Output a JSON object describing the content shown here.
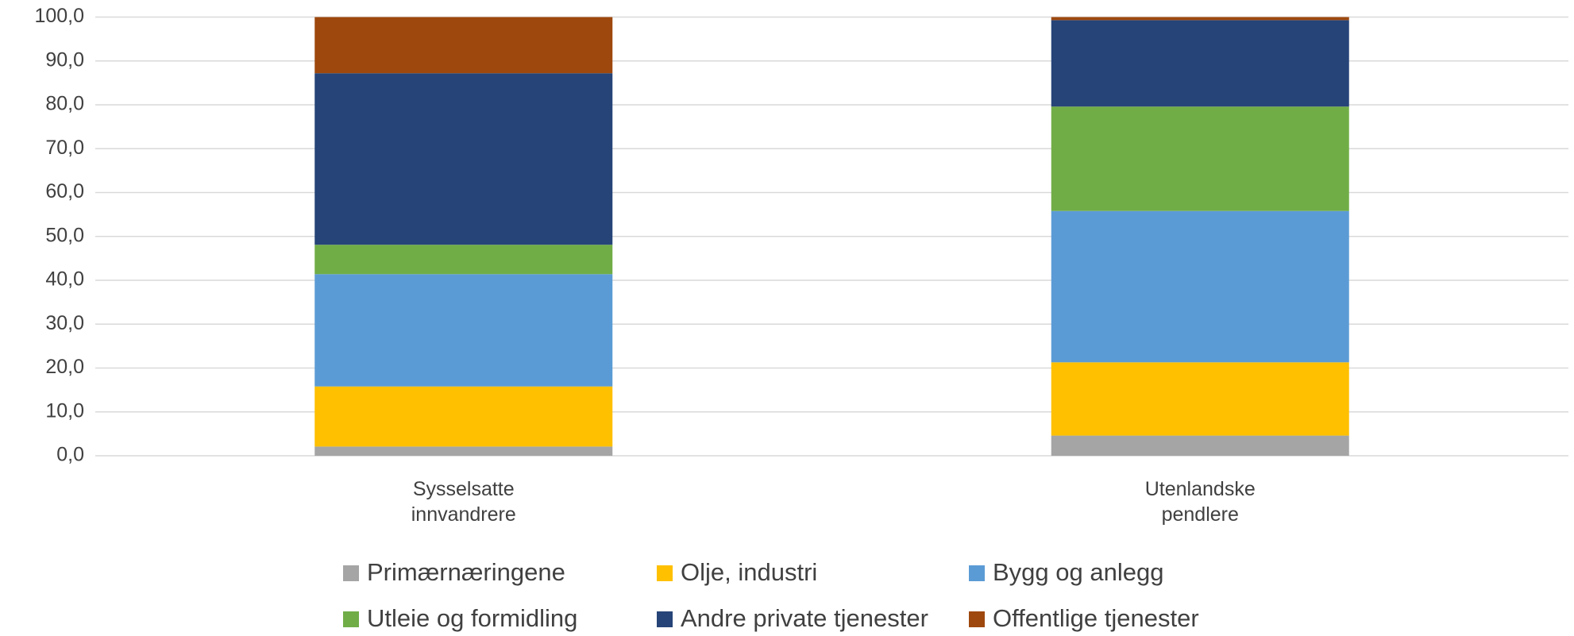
{
  "chart_data": {
    "type": "stacked_bar",
    "categories": [
      "Sysselsatte innvandrere",
      "Utenlandske pendlere"
    ],
    "series": [
      {
        "name": "Primærnæringene",
        "color": "#a5a5a5",
        "values": [
          2.1,
          4.6
        ]
      },
      {
        "name": "Olje, industri",
        "color": "#ffc000",
        "values": [
          13.7,
          16.7
        ]
      },
      {
        "name": "Bygg og anlegg",
        "color": "#5b9bd5",
        "values": [
          25.6,
          34.5
        ]
      },
      {
        "name": "Utleie og formidling",
        "color": "#70ad47",
        "values": [
          6.7,
          23.8
        ]
      },
      {
        "name": "Andre private tjenester",
        "color": "#264478",
        "values": [
          39.1,
          19.7
        ]
      },
      {
        "name": "Offentlige tjenester",
        "color": "#9e480e",
        "values": [
          12.8,
          0.7
        ]
      }
    ],
    "ylim": [
      0,
      100
    ],
    "yticks": [
      {
        "value": 0,
        "label": "0,0"
      },
      {
        "value": 10,
        "label": "10,0"
      },
      {
        "value": 20,
        "label": "20,0"
      },
      {
        "value": 30,
        "label": "30,0"
      },
      {
        "value": 40,
        "label": "40,0"
      },
      {
        "value": 50,
        "label": "50,0"
      },
      {
        "value": 60,
        "label": "60,0"
      },
      {
        "value": 70,
        "label": "70,0"
      },
      {
        "value": 80,
        "label": "80,0"
      },
      {
        "value": 90,
        "label": "90,0"
      },
      {
        "value": 100,
        "label": "100,0"
      }
    ],
    "grid": true,
    "legend": "bottom"
  }
}
